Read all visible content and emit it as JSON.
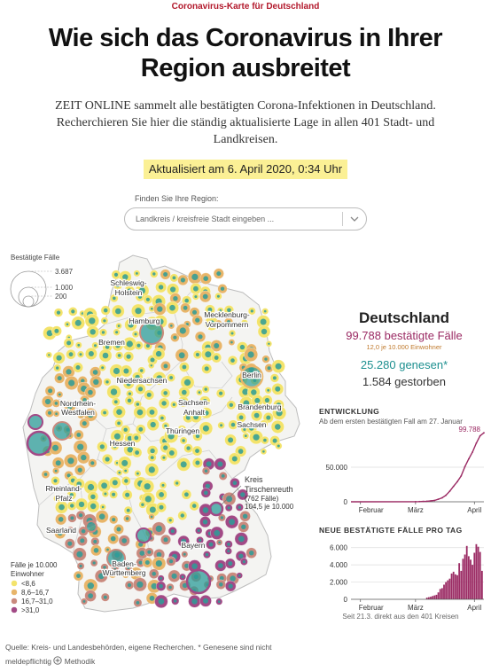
{
  "header": {
    "kicker": "Coronavirus-Karte für Deutschland",
    "headline_line1": "Wie sich das Coronavirus in Ihrer",
    "headline_line2": "Region ausbreitet",
    "intro_line1": "ZEIT ONLINE sammelt alle bestätigten Corona-Infektionen in Deutschland.",
    "intro_line2": "Recherchieren Sie hier die ständig aktualisierte Lage in allen 401 Stadt- und",
    "intro_line3": "Landkreisen.",
    "updated": "Aktualisiert am 6. April 2020, 0:34 Uhr"
  },
  "search": {
    "label": "Finden Sie Ihre Region:",
    "placeholder": "Landkreis / kreisfreie Stadt eingeben ..."
  },
  "map": {
    "size_legend": {
      "title": "Bestätigte Fälle",
      "values": [
        "3.687",
        "1.000",
        "200"
      ]
    },
    "color_legend": {
      "title_line1": "Fälle je 10.000",
      "title_line2": "Einwohner",
      "items": [
        {
          "label": "<8,6",
          "color": "#f3e36b"
        },
        {
          "label": "8,6–16,7",
          "color": "#e8b56a"
        },
        {
          "label": "16,7–31,0",
          "color": "#c98a7e"
        },
        {
          "label": ">31,0",
          "color": "#a24a86"
        }
      ]
    },
    "state_labels": [
      "Schleswig-",
      "Holstein",
      "Hamburg",
      "Mecklenburg-",
      "Vorpommern",
      "Bremen",
      "Niedersachsen",
      "Berlin",
      "Brandenburg",
      "Sachsen-",
      "Anhalt",
      "Nordrhein-",
      "Westfalen",
      "Thüringen",
      "Sachsen",
      "Hessen",
      "Rheinland-",
      "Pfalz",
      "Saarland",
      "Bayern",
      "Baden-",
      "Württemberg"
    ],
    "callout": {
      "line1": "Kreis",
      "line2": "Tirschenreuth",
      "line3": "(762 Fälle)",
      "line4": "104,5 je 10.000"
    },
    "colors": {
      "teal": "#2c9c98",
      "yellow": "#f3e36b",
      "orange": "#e8b56a",
      "rose": "#c98a7e",
      "purple": "#a24a86"
    }
  },
  "summary": {
    "title": "Deutschland",
    "cases": "99.788 bestätigte Fälle",
    "per_capita": "12,0 je 10.000 Einwohner",
    "recovered": "25.280 genesen*",
    "deaths": "1.584 gestorben"
  },
  "charts": {
    "cumulative": {
      "title": "ENTWICKLUNG",
      "subtitle": "Ab dem ersten bestätigten Fall am 27. Januar",
      "end_label": "99.788"
    },
    "daily": {
      "title": "NEUE BESTÄTIGTE FÄLLE PRO TAG",
      "footnote": "Seit 21.3. direkt aus den 401 Kreisen"
    }
  },
  "chart_data": [
    {
      "type": "line",
      "title": "ENTWICKLUNG",
      "subtitle": "Ab dem ersten bestätigten Fall am 27. Januar",
      "x_ticks": [
        "Februar",
        "März",
        "April"
      ],
      "y_ticks": [
        "50.000",
        "0"
      ],
      "ylim": [
        0,
        100000
      ],
      "x": [
        "2020-03-01",
        "2020-03-03",
        "2020-03-05",
        "2020-03-07",
        "2020-03-09",
        "2020-03-11",
        "2020-03-13",
        "2020-03-15",
        "2020-03-17",
        "2020-03-19",
        "2020-03-21",
        "2020-03-23",
        "2020-03-25",
        "2020-03-27",
        "2020-03-29",
        "2020-03-31",
        "2020-04-02",
        "2020-04-04",
        "2020-04-06"
      ],
      "values": [
        130,
        196,
        482,
        799,
        1224,
        1966,
        3675,
        5813,
        9367,
        15320,
        22364,
        29056,
        37323,
        50871,
        62095,
        71808,
        84794,
        95391,
        99788
      ],
      "annotation": "99.788"
    },
    {
      "type": "bar",
      "title": "NEUE BESTÄTIGTE FÄLLE PRO TAG",
      "x_ticks": [
        "Februar",
        "März",
        "April"
      ],
      "y_ticks": [
        "6.000",
        "4.000",
        "2.000",
        "0"
      ],
      "ylim": [
        0,
        7000
      ],
      "categories": [
        "07.03.",
        "08.03.",
        "09.03.",
        "10.03.",
        "11.03.",
        "12.03.",
        "13.03.",
        "14.03.",
        "15.03.",
        "16.03.",
        "17.03.",
        "18.03.",
        "19.03.",
        "20.03.",
        "21.03.",
        "22.03.",
        "23.03.",
        "24.03.",
        "25.03.",
        "26.03.",
        "27.03.",
        "28.03.",
        "29.03.",
        "30.03.",
        "31.03.",
        "01.04.",
        "02.04.",
        "03.04.",
        "04.04.",
        "05.04."
      ],
      "values": [
        200,
        250,
        300,
        380,
        450,
        520,
        800,
        1200,
        1300,
        1700,
        2000,
        2200,
        2400,
        3000,
        3200,
        2900,
        2800,
        4200,
        3300,
        4700,
        5200,
        6200,
        5000,
        4600,
        4000,
        5400,
        6400,
        6100,
        5500,
        3300
      ],
      "footnote": "Seit 21.3. direkt aus den 401 Kreisen"
    }
  ],
  "footer": {
    "source": "Quelle: Kreis- und Landesbehörden, eigene Recherchen. * Genesene sind nicht",
    "source_line2": "meldepflichtig",
    "method_link": "Methodik"
  }
}
